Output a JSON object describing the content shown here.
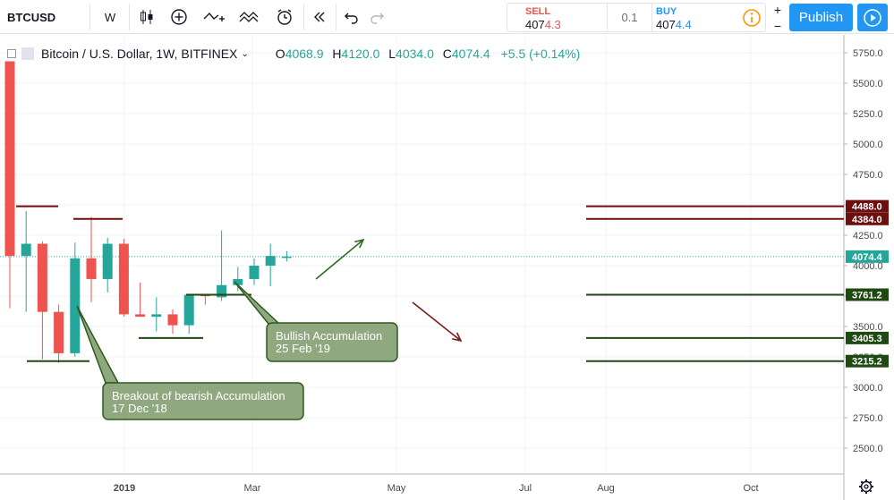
{
  "toolbar": {
    "symbol": "BTCUSD",
    "interval": "W",
    "icons": [
      "candles-icon",
      "add-indicator-icon",
      "compare-icon",
      "indicators-icon",
      "alert-icon",
      "replay-icon",
      "undo-icon",
      "redo-icon"
    ],
    "sell_label": "SELL",
    "sell_price_main": "407",
    "sell_price_tail": "4.3",
    "spread": "0.1",
    "buy_label": "BUY",
    "buy_price_main": "407",
    "buy_price_tail": "4.4",
    "publish_label": "Publish"
  },
  "legend": {
    "title": "Bitcoin / U.S. Dollar, 1W, BITFINEX",
    "o_label": "O",
    "o_value": "4068.9",
    "h_label": "H",
    "h_value": "4120.0",
    "l_label": "L",
    "l_value": "4034.0",
    "c_label": "C",
    "c_value": "4074.4",
    "change": "+5.5 (+0.14%)"
  },
  "colors": {
    "up": "#26a69a",
    "down": "#ef5350",
    "resistance": "#6d0f0f",
    "support": "#1e4a12",
    "callout_fill": "#8fa87f",
    "callout_border": "#2e5a1e"
  },
  "chart_data": {
    "type": "candlestick",
    "price_axis_ticks": [
      "5750.0",
      "5500.0",
      "5250.0",
      "5000.0",
      "4750.0",
      "4500.0",
      "4250.0",
      "4000.0",
      "3750.0",
      "3500.0",
      "3250.0",
      "3000.0",
      "2750.0",
      "2500.0"
    ],
    "time_axis_ticks": [
      "2019",
      "Mar",
      "May",
      "Jul",
      "Aug",
      "Oct"
    ],
    "last_price": "4074.4",
    "candles": [
      {
        "o": 5680,
        "h": 5680,
        "l": 3650,
        "c": 4080
      },
      {
        "o": 4080,
        "h": 4450,
        "l": 3620,
        "c": 4180
      },
      {
        "o": 4180,
        "h": 4200,
        "l": 3230,
        "c": 3620
      },
      {
        "o": 3620,
        "h": 3680,
        "l": 3200,
        "c": 3280
      },
      {
        "o": 3280,
        "h": 4190,
        "l": 3250,
        "c": 4060
      },
      {
        "o": 4060,
        "h": 4400,
        "l": 3700,
        "c": 3890
      },
      {
        "o": 3890,
        "h": 4230,
        "l": 3780,
        "c": 4180
      },
      {
        "o": 4180,
        "h": 4220,
        "l": 3580,
        "c": 3600
      },
      {
        "o": 3600,
        "h": 3860,
        "l": 3580,
        "c": 3580
      },
      {
        "o": 3580,
        "h": 3740,
        "l": 3460,
        "c": 3600
      },
      {
        "o": 3600,
        "h": 3640,
        "l": 3440,
        "c": 3510
      },
      {
        "o": 3510,
        "h": 3770,
        "l": 3440,
        "c": 3760
      },
      {
        "o": 3760,
        "h": 3760,
        "l": 3680,
        "c": 3750
      },
      {
        "o": 3740,
        "h": 4290,
        "l": 3710,
        "c": 3840
      },
      {
        "o": 3840,
        "h": 3990,
        "l": 3790,
        "c": 3890
      },
      {
        "o": 3890,
        "h": 4060,
        "l": 3840,
        "c": 4000
      },
      {
        "o": 4000,
        "h": 4180,
        "l": 3830,
        "c": 4080
      },
      {
        "o": 4068.9,
        "h": 4120,
        "l": 4034,
        "c": 4074.4
      }
    ],
    "levels": [
      {
        "value": 4488.0,
        "label": "4488.0",
        "kind": "resistance"
      },
      {
        "value": 4384.0,
        "label": "4384.0",
        "kind": "resistance"
      },
      {
        "value": 3761.2,
        "label": "3761.2",
        "kind": "support"
      },
      {
        "value": 3405.3,
        "label": "3405.3",
        "kind": "support"
      },
      {
        "value": 3215.2,
        "label": "3215.2",
        "kind": "support"
      }
    ],
    "annotations": [
      {
        "line1": "Breakout of bearish Accumulation",
        "line2": "17 Dec '18"
      },
      {
        "line1": "Bullish Accumulation",
        "line2": "25 Feb '19"
      }
    ]
  }
}
